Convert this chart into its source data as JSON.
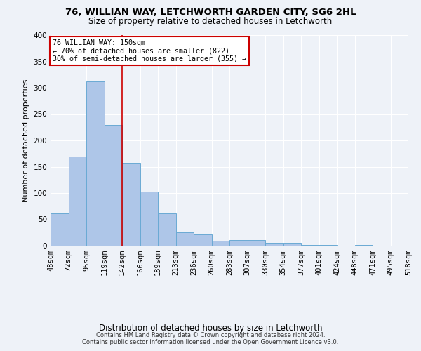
{
  "title1": "76, WILLIAN WAY, LETCHWORTH GARDEN CITY, SG6 2HL",
  "title2": "Size of property relative to detached houses in Letchworth",
  "xlabel": "Distribution of detached houses by size in Letchworth",
  "ylabel": "Number of detached properties",
  "footer1": "Contains HM Land Registry data © Crown copyright and database right 2024.",
  "footer2": "Contains public sector information licensed under the Open Government Licence v3.0.",
  "annotation_line1": "76 WILLIAN WAY: 150sqm",
  "annotation_line2": "← 70% of detached houses are smaller (822)",
  "annotation_line3": "30% of semi-detached houses are larger (355) →",
  "bar_values": [
    62,
    170,
    312,
    229,
    157,
    103,
    61,
    26,
    22,
    10,
    11,
    11,
    5,
    5,
    1,
    1,
    0,
    1,
    0,
    0
  ],
  "bin_labels": [
    "48sqm",
    "72sqm",
    "95sqm",
    "119sqm",
    "142sqm",
    "166sqm",
    "189sqm",
    "213sqm",
    "236sqm",
    "260sqm",
    "283sqm",
    "307sqm",
    "330sqm",
    "354sqm",
    "377sqm",
    "401sqm",
    "424sqm",
    "448sqm",
    "471sqm",
    "495sqm",
    "518sqm"
  ],
  "bar_color": "#aec6e8",
  "bar_edge_color": "#6aaad4",
  "vline_color": "#cc0000",
  "annotation_box_color": "#cc0000",
  "background_color": "#eef2f8",
  "grid_color": "#ffffff",
  "ylim": [
    0,
    400
  ],
  "vline_x_index": 4
}
